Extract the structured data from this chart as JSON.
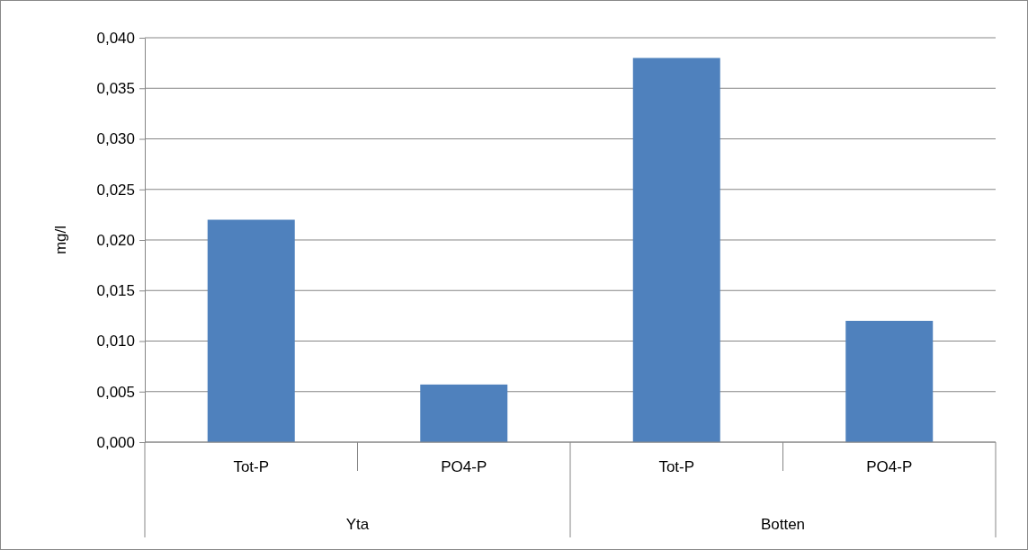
{
  "chart_data": {
    "type": "bar",
    "ylabel": "mg/l",
    "categories": [
      "Tot-P",
      "PO4-P",
      "Tot-P",
      "PO4-P"
    ],
    "values": [
      0.022,
      0.0057,
      0.038,
      0.012
    ],
    "color": "#4f81bd",
    "ylim": [
      0,
      0.04
    ],
    "yticks": [
      {
        "value": 0,
        "label": "0,000"
      },
      {
        "value": 0.005,
        "label": "0,005"
      },
      {
        "value": 0.01,
        "label": "0,010"
      },
      {
        "value": 0.015,
        "label": "0,015"
      },
      {
        "value": 0.02,
        "label": "0,020"
      },
      {
        "value": 0.025,
        "label": "0,025"
      },
      {
        "value": 0.03,
        "label": "0,030"
      },
      {
        "value": 0.035,
        "label": "0,035"
      },
      {
        "value": 0.04,
        "label": "0,040"
      }
    ],
    "grid": "y",
    "annotations": [
      "Yta",
      "Botten"
    ]
  }
}
